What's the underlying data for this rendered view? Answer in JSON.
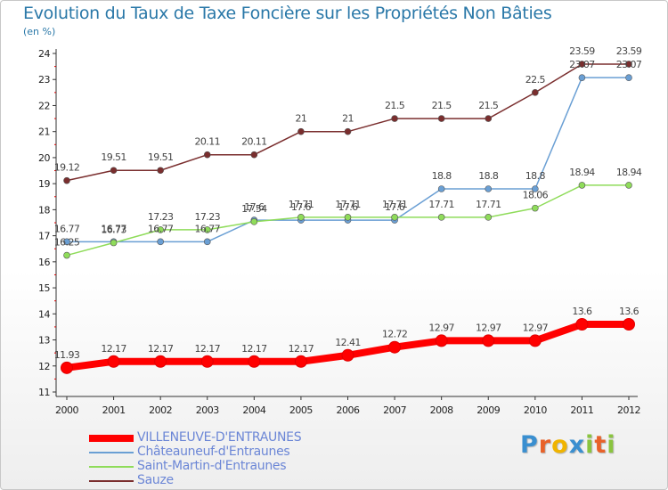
{
  "title": "Evolution du Taux de Taxe Foncière sur les Propriétés Non Bâties",
  "subtitle": "(en %)",
  "logo": {
    "text": "Proxiti",
    "letters": [
      {
        "ch": "P",
        "color": "#3a8fd0"
      },
      {
        "ch": "r",
        "color": "#e8622a"
      },
      {
        "ch": "o",
        "color": "#f0b400"
      },
      {
        "ch": "x",
        "color": "#3a8fd0"
      },
      {
        "ch": "i",
        "color": "#8ac43f"
      },
      {
        "ch": "t",
        "color": "#e8622a"
      },
      {
        "ch": "i",
        "color": "#8ac43f"
      }
    ]
  },
  "chart_data": {
    "type": "line",
    "title": "Evolution du Taux de Taxe Foncière sur les Propriétés Non Bâties",
    "ylabel": "(en %)",
    "xlabel": "",
    "x": [
      "2000",
      "2001",
      "2002",
      "2003",
      "2004",
      "2005",
      "2006",
      "2007",
      "2008",
      "2009",
      "2010",
      "2011",
      "2012"
    ],
    "ylim": [
      11,
      24
    ],
    "yticks": [
      "11",
      "12",
      "13",
      "14",
      "15",
      "16",
      "17",
      "18",
      "19",
      "20",
      "21",
      "22",
      "23",
      "24"
    ],
    "grid": false,
    "legend_position": "bottom-left",
    "series": [
      {
        "name": "VILLENEUVE-D'ENTRAUNES",
        "color": "#ff0000",
        "values": [
          11.93,
          12.17,
          12.17,
          12.17,
          12.17,
          12.17,
          12.41,
          12.72,
          12.97,
          12.97,
          12.97,
          13.6,
          13.6
        ],
        "labels": [
          "11.93",
          "12.17",
          "12.17",
          "12.17",
          "12.17",
          "12.17",
          "12.41",
          "12.72",
          "12.97",
          "12.97",
          "12.97",
          "13.6",
          "13.6"
        ],
        "emphasis": true
      },
      {
        "name": "Châteauneuf-d'Entraunes",
        "color": "#6a9fd4",
        "values": [
          16.77,
          16.77,
          16.77,
          16.77,
          17.6,
          17.6,
          17.6,
          17.6,
          18.8,
          18.8,
          18.8,
          23.07,
          23.07
        ],
        "labels": [
          "16.77",
          "16.77",
          "16.77",
          "16.77",
          "17.6",
          "17.6",
          "17.6",
          "17.6",
          "18.8",
          "18.8",
          "18.8",
          "23.07",
          "23.07"
        ]
      },
      {
        "name": "Saint-Martin-d'Entraunes",
        "color": "#8fdc5a",
        "values": [
          16.25,
          16.73,
          17.23,
          17.23,
          17.54,
          17.71,
          17.71,
          17.71,
          17.71,
          17.71,
          18.06,
          18.94,
          18.94
        ],
        "labels": [
          "16.25",
          "16.73",
          "17.23",
          "17.23",
          "17.54",
          "17.71",
          "17.71",
          "17.71",
          "17.71",
          "17.71",
          "18.06",
          "18.94",
          "18.94"
        ]
      },
      {
        "name": "Sauze",
        "color": "#7a2e2e",
        "values": [
          19.12,
          19.51,
          19.51,
          20.11,
          20.11,
          21,
          21,
          21.5,
          21.5,
          21.5,
          22.5,
          23.59,
          23.59
        ],
        "labels": [
          "19.12",
          "19.51",
          "19.51",
          "20.11",
          "20.11",
          "21",
          "21",
          "21.5",
          "21.5",
          "21.5",
          "22.5",
          "23.59",
          "23.59"
        ]
      }
    ]
  }
}
